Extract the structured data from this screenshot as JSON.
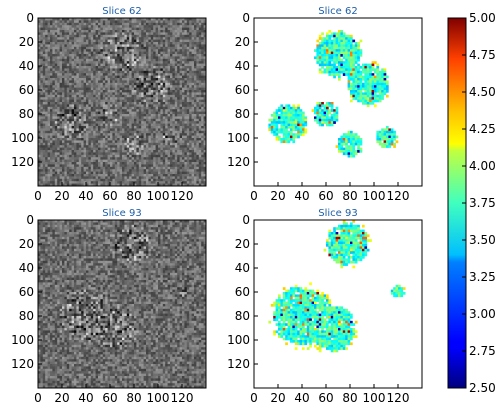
{
  "panels": [
    {
      "id": "p1",
      "title": "Slice 62",
      "kind": "grayscale"
    },
    {
      "id": "p2",
      "title": "Slice 62",
      "kind": "colormap"
    },
    {
      "id": "p3",
      "title": "Slice 93",
      "kind": "grayscale"
    },
    {
      "id": "p4",
      "title": "Slice 93",
      "kind": "colormap"
    }
  ],
  "chart_data": {
    "type": "heatmap",
    "grid": "2x2 image panels",
    "x_ticks": [
      "0",
      "20",
      "40",
      "60",
      "80",
      "100",
      "120"
    ],
    "y_ticks": [
      "0",
      "20",
      "40",
      "60",
      "80",
      "100",
      "120"
    ],
    "xlim": [
      0,
      140
    ],
    "ylim": [
      140,
      0
    ],
    "colorbar": {
      "min": 2.5,
      "max": 5.0,
      "ticks": [
        "5.00",
        "4.75",
        "4.50",
        "4.25",
        "4.00",
        "3.75",
        "3.50",
        "3.25",
        "3.00",
        "2.75",
        "2.50"
      ],
      "colormap": "jet"
    },
    "masked_regions": {
      "slice_62": [
        {
          "cx": 70,
          "cy": 30,
          "r": 22
        },
        {
          "cx": 95,
          "cy": 55,
          "r": 20
        },
        {
          "cx": 28,
          "cy": 88,
          "r": 18
        },
        {
          "cx": 60,
          "cy": 80,
          "r": 12
        },
        {
          "cx": 80,
          "cy": 105,
          "r": 12
        },
        {
          "cx": 110,
          "cy": 100,
          "r": 10
        }
      ],
      "slice_93": [
        {
          "cx": 78,
          "cy": 20,
          "r": 20
        },
        {
          "cx": 40,
          "cy": 80,
          "r": 28
        },
        {
          "cx": 65,
          "cy": 90,
          "r": 22
        },
        {
          "cx": 120,
          "cy": 60,
          "r": 6
        }
      ]
    }
  }
}
